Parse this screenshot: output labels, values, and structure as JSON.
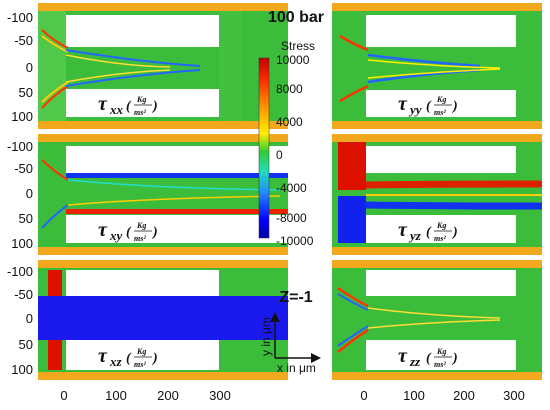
{
  "header": {
    "title": "100 bar"
  },
  "colorbar": {
    "title": "Stress",
    "ticks": [
      "10000",
      "8000",
      "4000",
      "0",
      "-4000",
      "-8000",
      "-10000"
    ]
  },
  "z_label": "Z=-1",
  "axes_hint": {
    "y": "y in μm",
    "x": "x in μm"
  },
  "y_ticks": [
    "-100",
    "-50",
    "0",
    "50",
    "100"
  ],
  "x_ticks": [
    "0",
    "100",
    "200",
    "300"
  ],
  "panels": [
    {
      "id": "xx",
      "tau": "τ",
      "sub": "xx",
      "frac_num": "Kg",
      "frac_den": "ms²"
    },
    {
      "id": "yy",
      "tau": "τ",
      "sub": "yy",
      "frac_num": "Kg",
      "frac_den": "ms²"
    },
    {
      "id": "xy",
      "tau": "τ",
      "sub": "xy",
      "frac_num": "Kg",
      "frac_den": "ms²"
    },
    {
      "id": "yz",
      "tau": "τ",
      "sub": "yz",
      "frac_num": "Kg",
      "frac_den": "ms²"
    },
    {
      "id": "xz",
      "tau": "τ",
      "sub": "xz",
      "frac_num": "Kg",
      "frac_den": "ms²"
    },
    {
      "id": "zz",
      "tau": "τ",
      "sub": "zz",
      "frac_num": "Kg",
      "frac_den": "ms²"
    }
  ],
  "colors": {
    "wall": "#f2a81d",
    "field": "#3bbd3b",
    "obstacle": "#ffffff"
  }
}
